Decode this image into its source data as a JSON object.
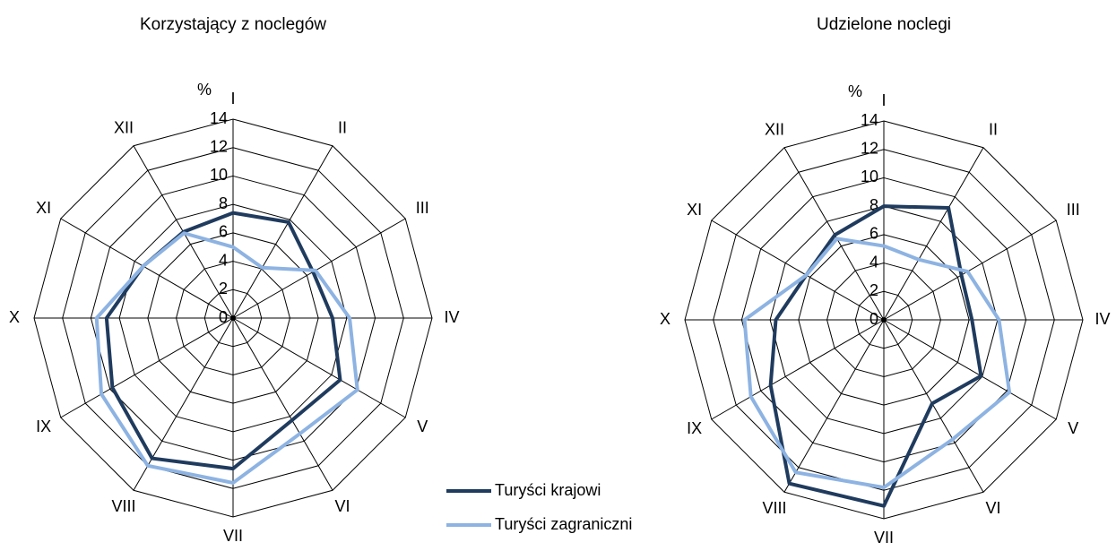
{
  "chart_data": [
    {
      "type": "radar",
      "title": "Korzystający z noclegów",
      "axis_label": "%",
      "categories": [
        "I",
        "II",
        "III",
        "IV",
        "V",
        "VI",
        "VII",
        "VIII",
        "IX",
        "X",
        "XI",
        "XII"
      ],
      "rlim": [
        0,
        14
      ],
      "rticks": [
        0,
        2,
        4,
        6,
        8,
        10,
        12,
        14
      ],
      "series": [
        {
          "name": "Turyści krajowi",
          "color": "#1f3b5e",
          "values": [
            7.4,
            7.8,
            6.5,
            7.0,
            8.7,
            8.3,
            10.6,
            11.4,
            9.8,
            8.9,
            7.3,
            7.0
          ]
        },
        {
          "name": "Turyści zagraniczni",
          "color": "#8db3e2",
          "values": [
            5.0,
            4.1,
            6.7,
            8.2,
            10.1,
            9.4,
            11.6,
            12.0,
            10.7,
            9.6,
            7.3,
            6.9
          ]
        }
      ]
    },
    {
      "type": "radar",
      "title": "Udzielone noclegi",
      "axis_label": "%",
      "categories": [
        "I",
        "II",
        "III",
        "IV",
        "V",
        "VI",
        "VII",
        "VIII",
        "IX",
        "X",
        "XI",
        "XII"
      ],
      "rlim": [
        0,
        14
      ],
      "rticks": [
        0,
        2,
        4,
        6,
        8,
        10,
        12,
        14
      ],
      "series": [
        {
          "values": [
            8.0,
            9.1,
            6.3,
            6.2,
            7.9,
            6.8,
            13.1,
            13.3,
            9.2,
            7.6,
            6.3,
            6.9
          ]
        },
        {
          "values": [
            5.2,
            4.9,
            6.8,
            8.1,
            10.2,
            9.7,
            11.8,
            12.4,
            10.8,
            9.8,
            6.3,
            6.6
          ]
        }
      ]
    }
  ]
}
